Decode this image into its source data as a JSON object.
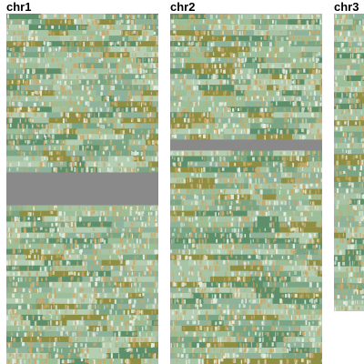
{
  "chromosomes": [
    {
      "label": "chr1",
      "row_count": 64,
      "gap_rows": [
        29,
        30,
        31,
        32,
        33,
        34
      ]
    },
    {
      "label": "chr2",
      "row_count": 64,
      "gap_rows": [
        23,
        24
      ]
    },
    {
      "label": "chr3",
      "row_count": 53,
      "gap_rows": []
    }
  ],
  "colors": {
    "background": "#ffffff",
    "gap": "#8a8a8a",
    "haplotype_greens": [
      "#8fb39a",
      "#9cbf9a",
      "#7aa685",
      "#5e8f6b",
      "#a8c4a6",
      "#b5cdb0"
    ],
    "olive": "#8e8f45",
    "allele_tan": "#c9a86a",
    "allele_light": "#e6ede0"
  }
}
